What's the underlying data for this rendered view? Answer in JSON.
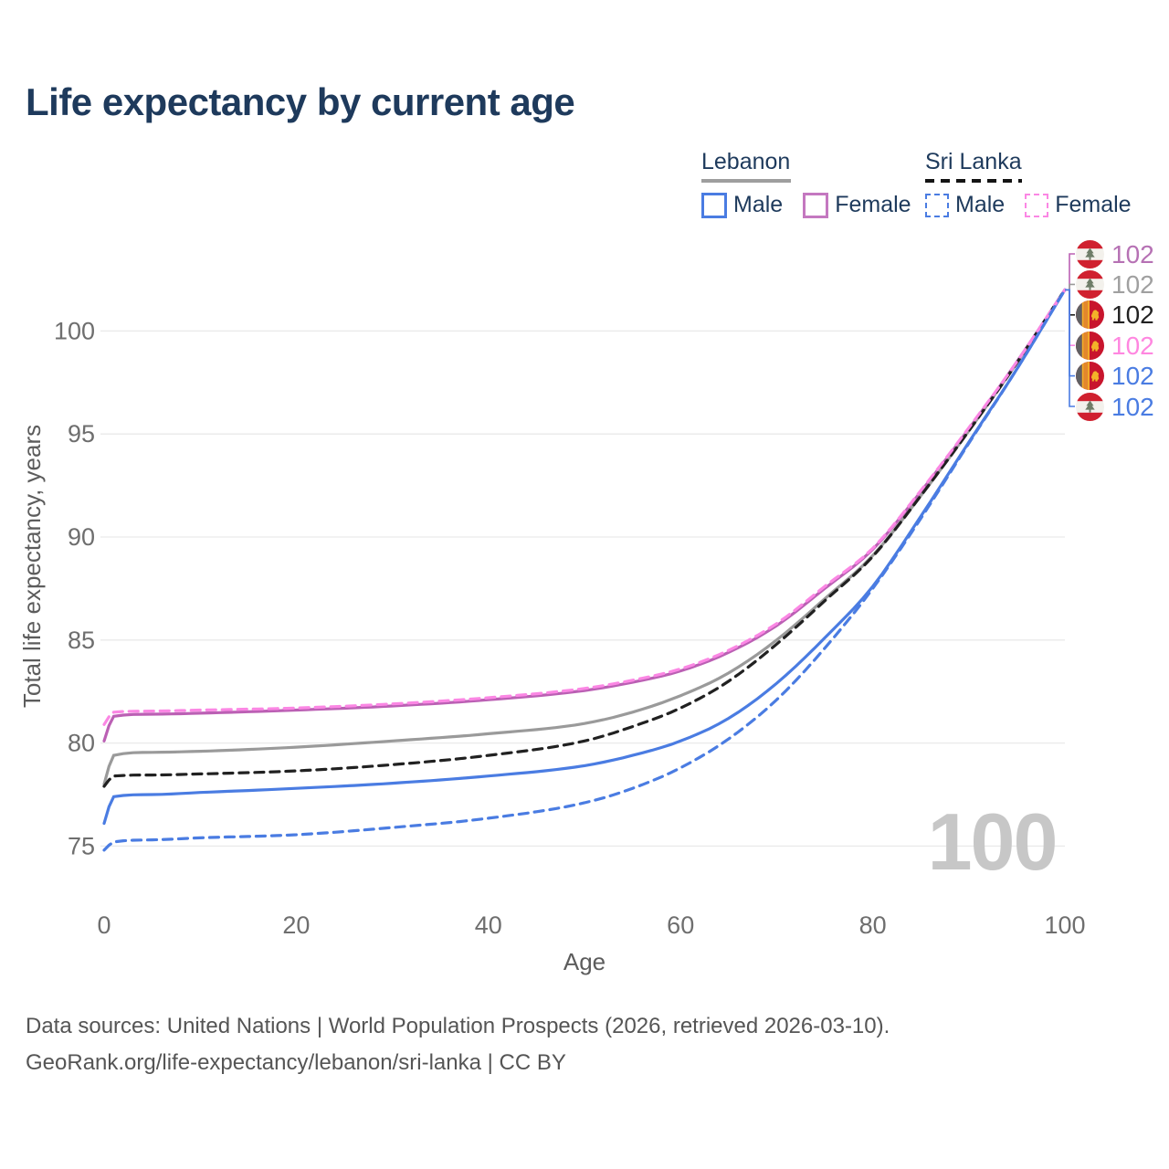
{
  "header": {
    "title": "Life expectancy by current age"
  },
  "legend": {
    "groups": [
      {
        "country": "Lebanon",
        "line_style": "solid",
        "underline_color": "#9e9e9e",
        "items": [
          {
            "label": "Male",
            "color": "#4a7ce2"
          },
          {
            "label": "Female",
            "color": "#c478c0"
          }
        ]
      },
      {
        "country": "Sri Lanka",
        "line_style": "dashed",
        "underline_color": "#141414",
        "items": [
          {
            "label": "Male",
            "color": "#4a7ce2"
          },
          {
            "label": "Female",
            "color": "#fb87e4"
          }
        ]
      }
    ]
  },
  "chart_data": {
    "type": "line",
    "title": "Life expectancy by current age",
    "xlabel": "Age",
    "ylabel": "Total life expectancy, years",
    "x_ticks": [
      0,
      20,
      40,
      60,
      80,
      100
    ],
    "y_ticks": [
      75,
      80,
      85,
      90,
      95,
      100
    ],
    "xlim": [
      0,
      100
    ],
    "ylim": [
      74.5,
      102.3
    ],
    "grid": "horizontal",
    "legend_position": "top-right",
    "watermark": "100",
    "key_ages": [
      0,
      1,
      5,
      10,
      20,
      30,
      40,
      50,
      55,
      60,
      65,
      70,
      75,
      80,
      85,
      90,
      95,
      100
    ],
    "series": [
      {
        "name": "Lebanon Female",
        "country": "Lebanon",
        "sex": "Female",
        "color": "#bb60b4",
        "dash": "solid",
        "end_value": 102,
        "label_row": 0,
        "values": [
          80.1,
          81.3,
          81.4,
          81.45,
          81.6,
          81.8,
          82.1,
          82.55,
          82.95,
          83.5,
          84.4,
          85.7,
          87.5,
          89.4,
          92.2,
          95.25,
          98.5,
          102
        ]
      },
      {
        "name": "Lebanon Both sexes",
        "country": "Lebanon",
        "sex": "Both sexes",
        "color": "#9a9a9a",
        "dash": "solid",
        "end_value": 102,
        "label_row": 1,
        "values": [
          78.0,
          79.4,
          79.55,
          79.6,
          79.8,
          80.1,
          80.45,
          80.95,
          81.5,
          82.3,
          83.4,
          85.0,
          87.0,
          89.1,
          92.0,
          95.15,
          98.45,
          102
        ]
      },
      {
        "name": "Lebanon Male",
        "country": "Lebanon",
        "sex": "Male",
        "color": "#4a7ce2",
        "dash": "solid",
        "end_value": 102,
        "label_row": 5,
        "values": [
          76.1,
          77.4,
          77.5,
          77.6,
          77.8,
          78.05,
          78.4,
          78.9,
          79.4,
          80.1,
          81.2,
          82.9,
          85.1,
          87.6,
          91.0,
          94.6,
          98.15,
          102
        ]
      },
      {
        "name": "Sri Lanka Both sexes",
        "country": "Sri Lanka",
        "sex": "Both sexes",
        "color": "#212121",
        "dash": "dashed",
        "end_value": 102,
        "label_row": 2,
        "values": [
          77.9,
          78.4,
          78.45,
          78.5,
          78.65,
          78.95,
          79.4,
          80.1,
          80.8,
          81.7,
          83.0,
          84.8,
          86.9,
          89.05,
          92.0,
          95.15,
          98.45,
          102
        ]
      },
      {
        "name": "Sri Lanka Female",
        "country": "Sri Lanka",
        "sex": "Female",
        "color": "#fb87e4",
        "dash": "dashed",
        "end_value": 102,
        "label_row": 3,
        "values": [
          80.9,
          81.5,
          81.55,
          81.6,
          81.7,
          81.9,
          82.2,
          82.65,
          83.05,
          83.6,
          84.5,
          85.8,
          87.6,
          89.45,
          92.25,
          95.3,
          98.5,
          102
        ]
      },
      {
        "name": "Sri Lanka Male",
        "country": "Sri Lanka",
        "sex": "Male",
        "color": "#4a7ce2",
        "dash": "dashed",
        "end_value": 102,
        "label_row": 4,
        "values": [
          74.8,
          75.2,
          75.3,
          75.4,
          75.55,
          75.9,
          76.35,
          77.1,
          77.8,
          78.8,
          80.2,
          82.1,
          84.6,
          87.5,
          90.9,
          94.55,
          98.15,
          102
        ]
      }
    ]
  },
  "endpoint_labels": [
    {
      "flag": "lebanon",
      "value": "102",
      "color": "#b671b4"
    },
    {
      "flag": "lebanon",
      "value": "102",
      "color": "#a0a0a0"
    },
    {
      "flag": "sri-lanka",
      "value": "102",
      "color": "#222222"
    },
    {
      "flag": "sri-lanka",
      "value": "102",
      "color": "#ff87e0"
    },
    {
      "flag": "sri-lanka",
      "value": "102",
      "color": "#4a7ce2"
    },
    {
      "flag": "lebanon",
      "value": "102",
      "color": "#4a7ce2"
    }
  ],
  "footer": {
    "line1": "Data sources: United Nations | World Population Prospects (2026, retrieved 2026-03-10).",
    "line2": "GeoRank.org/life-expectancy/lebanon/sri-lanka | CC BY"
  }
}
